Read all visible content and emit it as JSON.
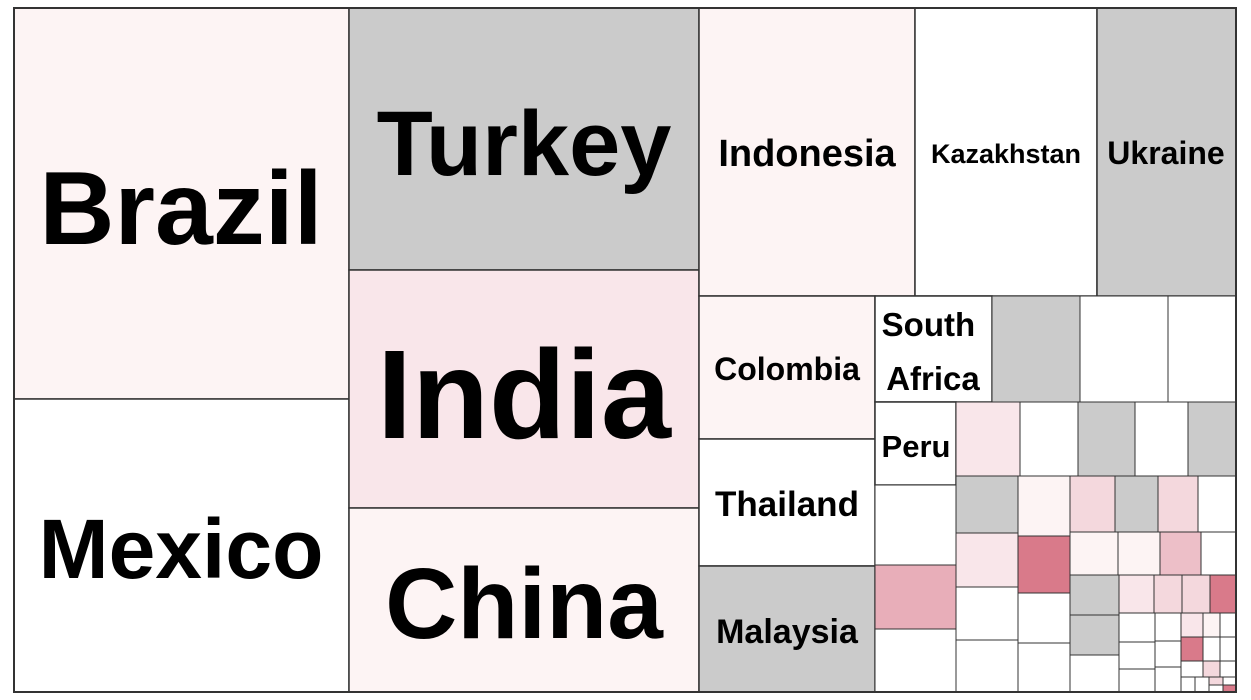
{
  "chart_data": {
    "type": "treemap",
    "colors": {
      "grey": "#cbcbcb",
      "white": "#ffffff",
      "pink1": "#fdf4f4",
      "pink2": "#f9e6ea",
      "pink3": "#f4d8dd",
      "pink4": "#edbfc8",
      "pink5": "#e8aeb9",
      "pink6": "#d97a8a"
    },
    "cells": [
      {
        "label": "Brazil",
        "color": "pink1"
      },
      {
        "label": "Mexico",
        "color": "white"
      },
      {
        "label": "Turkey",
        "color": "grey"
      },
      {
        "label": "India",
        "color": "pink2"
      },
      {
        "label": "China",
        "color": "pink1"
      },
      {
        "label": "Indonesia",
        "color": "pink1"
      },
      {
        "label": "Kazakhstan",
        "color": "white"
      },
      {
        "label": "Ukraine",
        "color": "grey"
      },
      {
        "label": "Colombia",
        "color": "pink1"
      },
      {
        "label": "Thailand",
        "color": "white"
      },
      {
        "label": "Malaysia",
        "color": "grey"
      },
      {
        "label": "South Africa",
        "color": "white"
      },
      {
        "label": "Peru",
        "color": "white"
      }
    ]
  }
}
